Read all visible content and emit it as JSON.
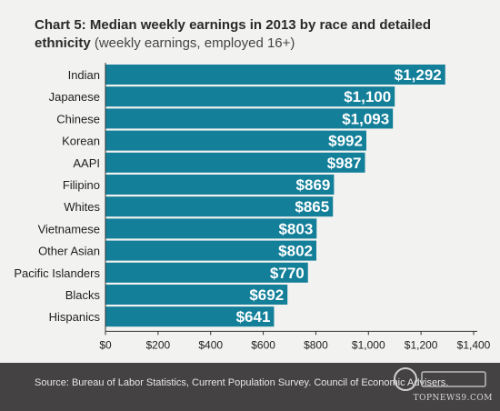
{
  "chart_data": {
    "type": "bar",
    "orientation": "horizontal",
    "title_prefix": "Chart 5:",
    "title": "Median weekly earnings in 2013 by race and detailed ethnicity",
    "subtitle": "(weekly earnings, employed 16+)",
    "categories": [
      "Indian",
      "Japanese",
      "Chinese",
      "Korean",
      "AAPI",
      "Filipino",
      "Whites",
      "Vietnamese",
      "Other Asian",
      "Pacific Islanders",
      "Blacks",
      "Hispanics"
    ],
    "values": [
      1292,
      1100,
      1093,
      992,
      987,
      869,
      865,
      803,
      802,
      770,
      692,
      641
    ],
    "value_labels": [
      "$1,292",
      "$1,100",
      "$1,093",
      "$992",
      "$987",
      "$869",
      "$865",
      "$803",
      "$802",
      "$770",
      "$692",
      "$641"
    ],
    "xlim": [
      0,
      1400
    ],
    "x_ticks": [
      0,
      200,
      400,
      600,
      800,
      1000,
      1200,
      1400
    ],
    "x_tick_labels": [
      "$0",
      "$200",
      "$400",
      "$600",
      "$800",
      "$1,000",
      "$1,200",
      "$1,400"
    ],
    "bar_color": "#137f99",
    "grid": false
  },
  "footer": {
    "source": "Source: Bureau of Labor Statistics, Current Population Survey. Council of Economic Advisers."
  },
  "watermark": {
    "text": "TOPNEWS9.COM"
  }
}
